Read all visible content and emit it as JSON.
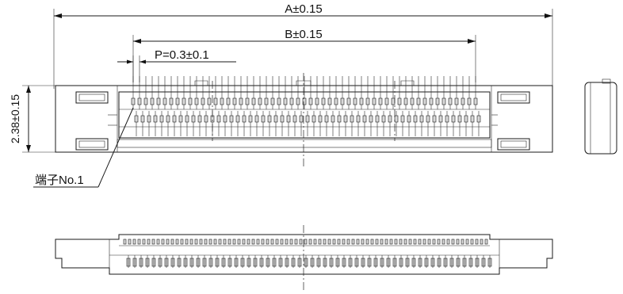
{
  "dimensions": {
    "a_label": "A±0.15",
    "b_label": "B±0.15",
    "pitch_label": "P=0.3±0.1",
    "height_label": "2.38±0.15"
  },
  "callouts": {
    "terminal_no1": "端子No.1"
  },
  "views": [
    "top-view",
    "side-view",
    "front-view"
  ]
}
